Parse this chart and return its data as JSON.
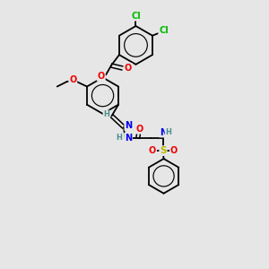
{
  "bg_color": "#e6e6e6",
  "bond_color": "#000000",
  "bond_width": 1.3,
  "atom_colors": {
    "C": "#000000",
    "H": "#4a8f8f",
    "N": "#0000ee",
    "O": "#ee0000",
    "S": "#bbbb00",
    "Cl": "#00bb00"
  },
  "font_size": 6.5,
  "figsize": [
    3.0,
    3.0
  ],
  "dpi": 100,
  "xlim": [
    0,
    10
  ],
  "ylim": [
    0,
    10
  ]
}
